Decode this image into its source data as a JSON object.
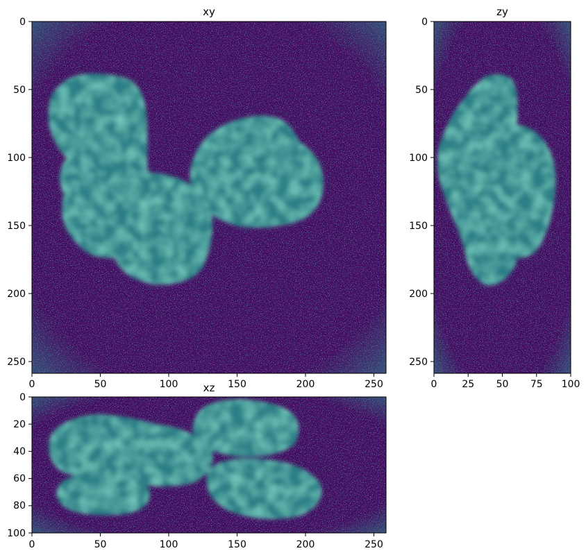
{
  "colors": {
    "background": "#430d61",
    "noise_light": "#2c8c8c",
    "blob_fill": "#2a7f86",
    "blob_edge": "#33638d",
    "blob_spot": "#2fa08a",
    "axes": "#000000"
  },
  "chart_data": [
    {
      "type": "heatmap",
      "title": "xy",
      "colormap": "viridis",
      "xlim": [
        0,
        259
      ],
      "ylim": [
        259,
        0
      ],
      "xticks": [
        "0",
        "50",
        "100",
        "150",
        "200",
        "250"
      ],
      "yticks": [
        "0",
        "50",
        "100",
        "150",
        "200",
        "250"
      ],
      "xlabel": "",
      "ylabel": ""
    },
    {
      "type": "heatmap",
      "title": "zy",
      "colormap": "viridis",
      "xlim": [
        0,
        100
      ],
      "ylim": [
        259,
        0
      ],
      "xticks": [
        "0",
        "25",
        "50",
        "75",
        "100"
      ],
      "yticks": [
        "0",
        "50",
        "100",
        "150",
        "200",
        "250"
      ],
      "xlabel": "",
      "ylabel": ""
    },
    {
      "type": "heatmap",
      "title": "xz",
      "colormap": "viridis",
      "xlim": [
        0,
        259
      ],
      "ylim": [
        100,
        0
      ],
      "xticks": [
        "0",
        "50",
        "100",
        "150",
        "200",
        "250"
      ],
      "yticks": [
        "0",
        "20",
        "40",
        "60",
        "80",
        "100"
      ],
      "xlabel": "",
      "ylabel": ""
    }
  ]
}
